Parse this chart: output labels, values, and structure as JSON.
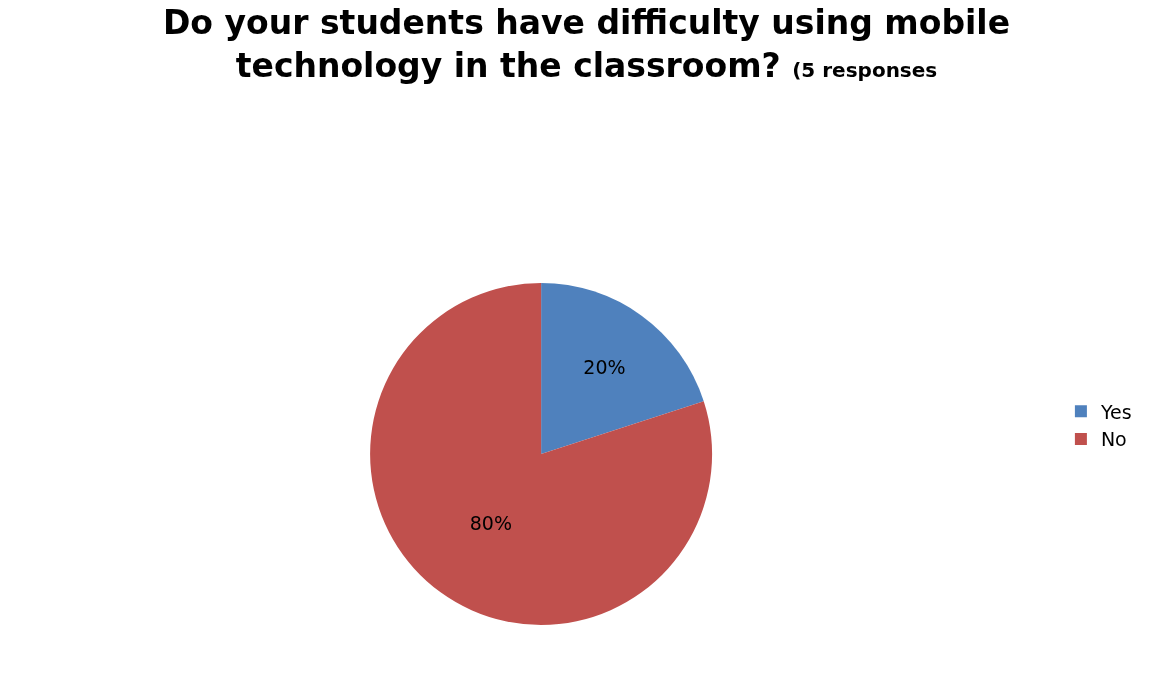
{
  "chart_data": {
    "type": "pie",
    "title": "Do your students have difficulty using mobile technology in the classroom?",
    "subtitle": "(5 responses",
    "categories": [
      "Yes",
      "No"
    ],
    "values": [
      20,
      80
    ],
    "colors": [
      "#4f81bd",
      "#c0504d"
    ],
    "value_labels": [
      "20%",
      "80%"
    ],
    "legend": "right"
  }
}
